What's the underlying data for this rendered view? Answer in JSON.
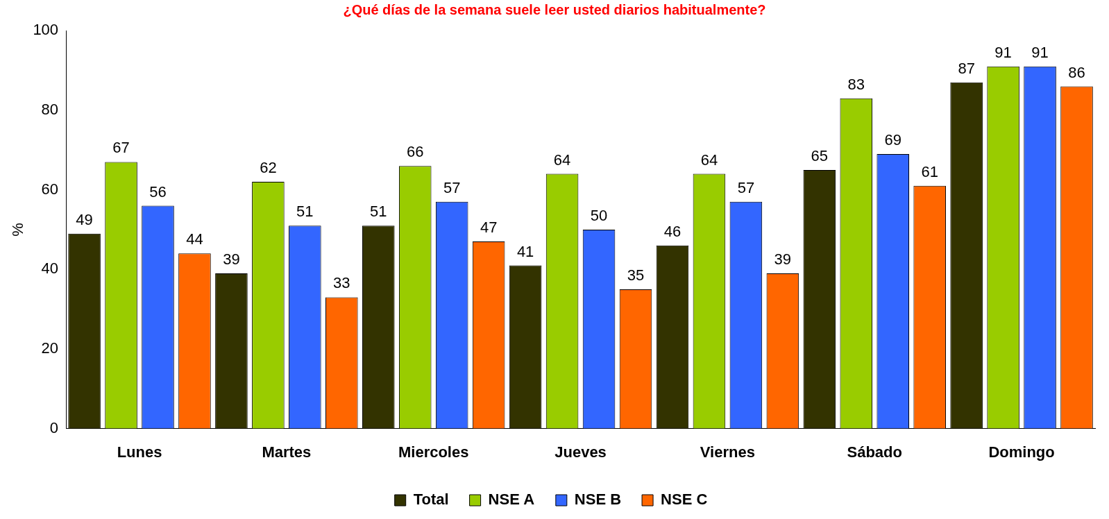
{
  "chart_data": {
    "type": "bar",
    "title": "¿Qué días de la semana suele leer usted diarios habitualmente?",
    "ylabel": "%",
    "categories": [
      "Lunes",
      "Martes",
      "Miercoles",
      "Jueves",
      "Viernes",
      "Sábado",
      "Domingo"
    ],
    "series": [
      {
        "name": "Total",
        "color": "#333300",
        "values": [
          49,
          39,
          51,
          41,
          46,
          65,
          87
        ]
      },
      {
        "name": "NSE A",
        "color": "#99cc00",
        "values": [
          67,
          62,
          66,
          64,
          64,
          83,
          91
        ]
      },
      {
        "name": "NSE B",
        "color": "#3366ff",
        "values": [
          56,
          51,
          57,
          50,
          57,
          69,
          91
        ]
      },
      {
        "name": "NSE C",
        "color": "#ff6600",
        "values": [
          44,
          33,
          47,
          35,
          39,
          61,
          86
        ]
      }
    ],
    "ylim": [
      0,
      100
    ],
    "yticks": [
      0,
      20,
      40,
      60,
      80,
      100
    ],
    "grid": false,
    "legend": "bottom",
    "data_labels": true
  }
}
